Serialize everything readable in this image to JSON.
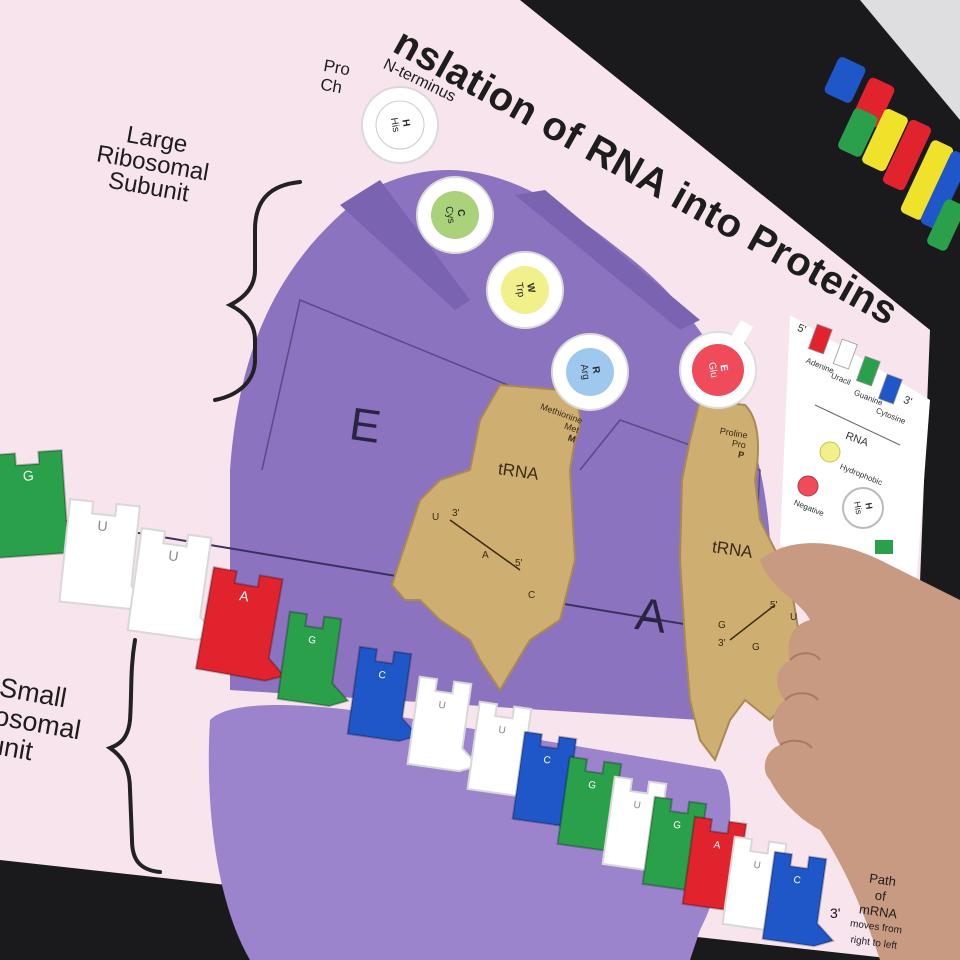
{
  "board": {
    "title": "nslation of RNA into Proteins",
    "large_subunit_label": [
      "Large",
      "Ribosomal",
      "Subunit"
    ],
    "small_subunit_label": [
      "Small",
      "osomal",
      "unit"
    ],
    "protein_chain_label": [
      "Pro",
      "Ch"
    ],
    "n_terminus_label": "N-terminus",
    "site_e": "E",
    "site_a": "A",
    "path_label": [
      "Path",
      "of",
      "mRNA",
      "moves from",
      "right to left"
    ]
  },
  "trna_p": {
    "label": "tRNA",
    "amino_name": "Methionine",
    "amino_abbr": "Met",
    "amino_letter": "M",
    "anticodon": [
      "U",
      "A",
      "C"
    ],
    "end3": "3'",
    "end5": "5'"
  },
  "trna_a": {
    "label": "tRNA",
    "amino_name": "Proline",
    "amino_abbr": "Pro",
    "amino_letter": "P",
    "anticodon": [
      "G",
      "G",
      "U"
    ],
    "end3": "3'",
    "end5": "5'"
  },
  "chain": [
    {
      "letter": "H",
      "abbr": "His",
      "color": "#ffffff"
    },
    {
      "letter": "C",
      "abbr": "Cys",
      "color": "#a9d27a"
    },
    {
      "letter": "W",
      "abbr": "Trp",
      "color": "#f1f08a"
    },
    {
      "letter": "R",
      "abbr": "Arg",
      "color": "#9fc8ee"
    }
  ],
  "incoming_amino": {
    "letter": "E",
    "abbr": "Glu",
    "color": "#ef4b5a"
  },
  "mrna": [
    {
      "base": "G",
      "color": "#2aa04a"
    },
    {
      "base": "U",
      "color": "#ffffff"
    },
    {
      "base": "U",
      "color": "#ffffff"
    },
    {
      "base": "A",
      "color": "#e1232e"
    },
    {
      "base": "G",
      "color": "#2aa04a"
    },
    {
      "base": "C",
      "color": "#1f56c8"
    },
    {
      "base": "U",
      "color": "#ffffff"
    },
    {
      "base": "U",
      "color": "#ffffff"
    },
    {
      "base": "C",
      "color": "#1f56c8"
    },
    {
      "base": "G",
      "color": "#2aa04a"
    },
    {
      "base": "U",
      "color": "#ffffff"
    },
    {
      "base": "G",
      "color": "#2aa04a"
    },
    {
      "base": "A",
      "color": "#e1232e"
    },
    {
      "base": "U",
      "color": "#ffffff"
    },
    {
      "base": "C",
      "color": "#1f56c8"
    }
  ],
  "mrna_end3": "3'",
  "legend": {
    "end5": "5'",
    "end3": "3'",
    "bases": [
      {
        "name": "Adenine",
        "color": "#e1232e"
      },
      {
        "name": "Uracil",
        "color": "#ffffff"
      },
      {
        "name": "Guanine",
        "color": "#2aa04a"
      },
      {
        "name": "Cytosine",
        "color": "#1f56c8"
      }
    ],
    "rna_label": "RNA",
    "amino_types": [
      "Hydrophobic",
      "Negative"
    ],
    "sample_amino": {
      "letter": "H",
      "abbr": "His"
    }
  },
  "colors": {
    "board": "#f7e4ec",
    "ribosome": "#8b73bf",
    "ribosome_dark": "#7a63b0",
    "trna": "#cfae72",
    "background": "#1a1a1d",
    "skin": "#c99a82"
  }
}
